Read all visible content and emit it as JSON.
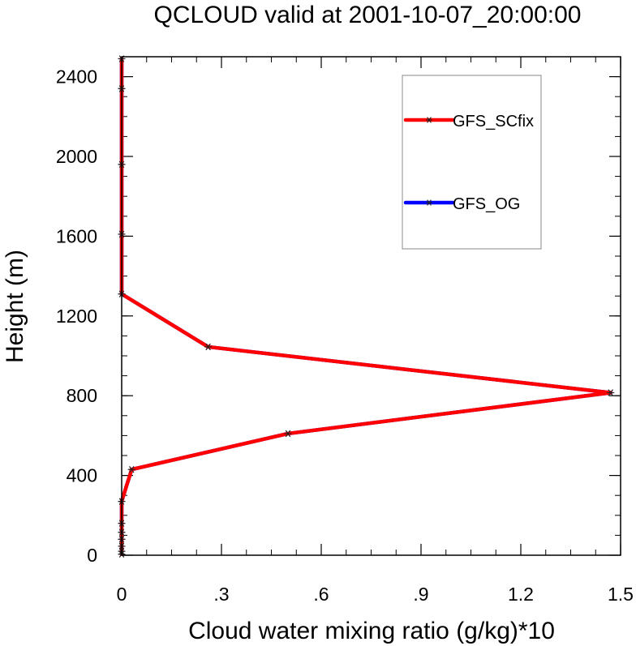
{
  "chart_data": {
    "type": "line",
    "title": "QCLOUD valid at 2001-10-07_20:00:00",
    "xlabel": "Cloud water mixing ratio (g/kg)*10",
    "ylabel": "Height (m)",
    "xlim": [
      0,
      1.5
    ],
    "ylim": [
      0,
      2500
    ],
    "x_ticks": [
      0,
      0.3,
      0.6,
      0.9,
      1.2,
      1.5
    ],
    "x_tick_labels": [
      "0",
      ".3",
      ".6",
      ".9",
      "1.2",
      "1.5"
    ],
    "y_ticks": [
      0,
      400,
      800,
      1200,
      1600,
      2000,
      2400
    ],
    "y_tick_labels": [
      "0",
      "400",
      "800",
      "1200",
      "1600",
      "2000",
      "2400"
    ],
    "x_minor_step": 0.075,
    "y_minor_step": 100,
    "grid": false,
    "legend_position": "top-right",
    "series": [
      {
        "name": "GFS_SCfix",
        "color": "#ff0000",
        "marker": "asterisk",
        "x": [
          0,
          0,
          0,
          0,
          0,
          0,
          0,
          0.03,
          0.5,
          1.47,
          0.26,
          0,
          0,
          0,
          0,
          0
        ],
        "y": [
          5,
          20,
          45,
          80,
          115,
          160,
          270,
          430,
          610,
          815,
          1045,
          1310,
          1610,
          1960,
          2340,
          2490
        ]
      },
      {
        "name": "GFS_OG",
        "color": "#0000ff",
        "marker": "asterisk",
        "x": [
          0,
          0,
          0,
          0,
          0,
          0,
          0,
          0.03,
          0.5,
          1.47,
          0.26,
          0,
          0,
          0,
          0,
          0
        ],
        "y": [
          5,
          20,
          45,
          80,
          115,
          160,
          270,
          430,
          610,
          815,
          1045,
          1310,
          1610,
          1960,
          2340,
          2490
        ]
      }
    ]
  }
}
